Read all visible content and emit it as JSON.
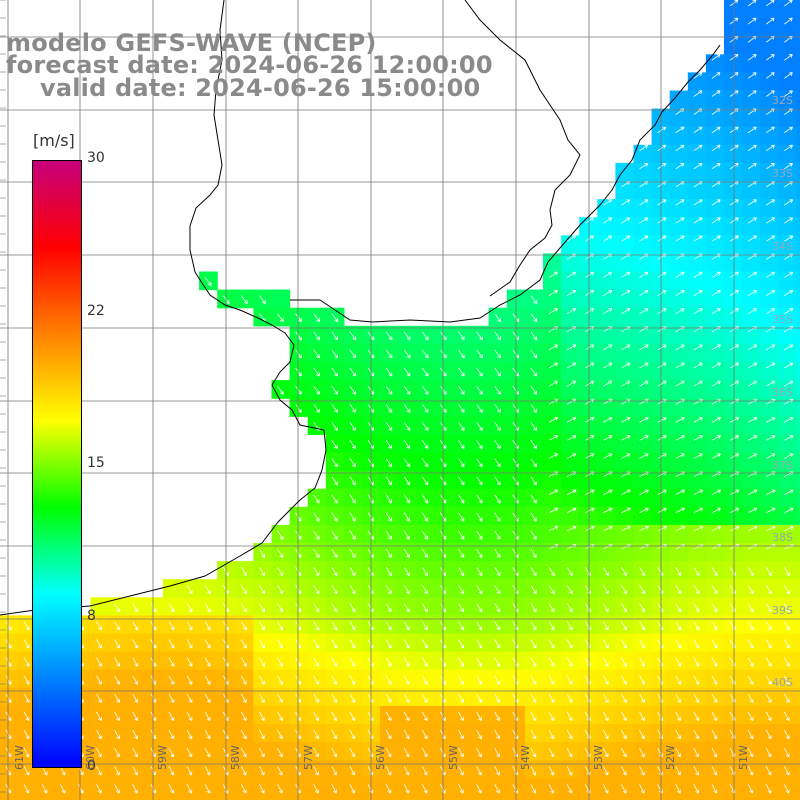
{
  "title": {
    "line1": "modelo GEFS-WAVE (NCEP)",
    "line2": "forecast date: 2024-06-26 12:00:00",
    "line3": "valid date: 2024-06-26 15:00:00"
  },
  "colorbar": {
    "unit": "[m/s]",
    "ticks": [
      "30",
      "22",
      "15",
      "8",
      "0"
    ],
    "gradient_colors": [
      "#c7007d",
      "#ff0000",
      "#ff8000",
      "#ffff00",
      "#00ff00",
      "#00ffff",
      "#0080ff",
      "#0000ff"
    ]
  },
  "map": {
    "lat_labels": [
      "32S",
      "33S",
      "34S",
      "35S",
      "36S",
      "37S",
      "38S",
      "39S",
      "40S"
    ],
    "lon_labels": [
      "61W",
      "60W",
      "59W",
      "58W",
      "57W",
      "56W",
      "55W",
      "54W",
      "53W",
      "52W",
      "51W"
    ],
    "field": "wind speed with wind direction arrows",
    "colors": {
      "land": "#ffffff",
      "grid": "#777777",
      "coast": "#000000",
      "arrows": "#ffffff"
    }
  }
}
